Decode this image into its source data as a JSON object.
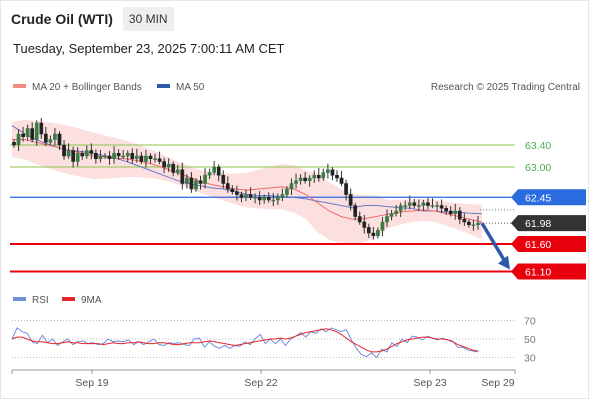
{
  "header": {
    "instrument": "Crude Oil (WTI)",
    "interval": "30 MIN",
    "datetime": "Tuesday, September 23, 2025 7:00:11 AM CET"
  },
  "legend": {
    "items": [
      {
        "label": "MA 20 + Bollinger Bands",
        "color": "#f28b82"
      },
      {
        "label": "MA 50",
        "color": "#2a5aa8"
      }
    ],
    "credit": "Research © 2025 Trading Central"
  },
  "rsi_legend": {
    "items": [
      {
        "label": "RSI",
        "color": "#6f8fd8"
      },
      {
        "label": "9MA",
        "color": "#e8262a"
      }
    ]
  },
  "chart_data": {
    "type": "line",
    "title": "",
    "xlabel": "",
    "ylabel": "",
    "x_ticks": [
      "Sep 19",
      "Sep 22",
      "Sep 23",
      "Sep 29"
    ],
    "ylim": [
      60.8,
      64.0
    ],
    "levels": [
      {
        "value": 63.4,
        "label": "63.40",
        "kind": "target",
        "color": "#8bc34a",
        "text_color": "#4caf50"
      },
      {
        "value": 63.0,
        "label": "63.00",
        "kind": "target",
        "color": "#8bc34a",
        "text_color": "#4caf50"
      },
      {
        "value": 62.45,
        "label": "62.45",
        "kind": "pivot",
        "color": "#2a6be0",
        "text_color": "#ffffff"
      },
      {
        "value": 61.98,
        "label": "61.98",
        "kind": "last",
        "color": "#333333",
        "text_color": "#ffffff"
      },
      {
        "value": 61.6,
        "label": "61.60",
        "kind": "support",
        "color": "#e8000d",
        "text_color": "#ffffff"
      },
      {
        "value": 61.1,
        "label": "61.10",
        "kind": "support",
        "color": "#e8000d",
        "text_color": "#ffffff"
      }
    ],
    "series": [
      {
        "name": "Price",
        "values": [
          63.4,
          63.6,
          63.55,
          63.7,
          63.5,
          63.8,
          63.6,
          63.45,
          63.5,
          63.6,
          63.4,
          63.2,
          63.3,
          63.1,
          63.25,
          63.2,
          63.3,
          63.25,
          63.15,
          63.2,
          63.2,
          63.15,
          63.25,
          63.2,
          63.2,
          63.25,
          63.15,
          63.2,
          63.1,
          63.2,
          63.15,
          63.15,
          63.1,
          63.0,
          63.05,
          62.9,
          62.95,
          62.7,
          62.8,
          62.6,
          62.75,
          62.7,
          62.85,
          62.9,
          63.0,
          62.85,
          62.7,
          62.6,
          62.55,
          62.5,
          62.45,
          62.5,
          62.45,
          62.45,
          62.4,
          62.45,
          62.4,
          62.4,
          62.45,
          62.5,
          62.6,
          62.7,
          62.75,
          62.8,
          62.75,
          62.8,
          62.85,
          62.8,
          62.9,
          62.95,
          62.85,
          62.8,
          62.7,
          62.5,
          62.3,
          62.1,
          62.0,
          61.9,
          61.8,
          61.75,
          61.85,
          62.0,
          62.1,
          62.15,
          62.2,
          62.3,
          62.3,
          62.35,
          62.3,
          62.3,
          62.35,
          62.3,
          62.3,
          62.3,
          62.25,
          62.2,
          62.15,
          62.2,
          62.05,
          62.0,
          61.95,
          61.95,
          61.98
        ]
      },
      {
        "name": "MA 20",
        "values": [
          63.5,
          63.5,
          63.45,
          63.4,
          63.35,
          63.3,
          63.25,
          63.2,
          63.18,
          63.16,
          63.14,
          63.1,
          63.05,
          62.98,
          62.9,
          62.82,
          62.74,
          62.68,
          62.64,
          62.6,
          62.58,
          62.6,
          62.62,
          62.64,
          62.6,
          62.5,
          62.35,
          62.2,
          62.1,
          62.05,
          62.06,
          62.1,
          62.14,
          62.18,
          62.2,
          62.22,
          62.2,
          62.15,
          62.1,
          62.05,
          62.0
        ]
      },
      {
        "name": "MA 50",
        "values": [
          63.75,
          63.62,
          63.5,
          63.42,
          63.35,
          63.3,
          63.28,
          63.24,
          63.2,
          63.15,
          63.08,
          63.0,
          62.92,
          62.84,
          62.76,
          62.7,
          62.66,
          62.62,
          62.6,
          62.56,
          62.5,
          62.48,
          62.48,
          62.46,
          62.45,
          62.42,
          62.38,
          62.34,
          62.3,
          62.26,
          62.3,
          62.3,
          62.28,
          62.26,
          62.25,
          62.2,
          62.2,
          62.18,
          62.18,
          62.16,
          62.15
        ]
      },
      {
        "name": "RSI",
        "values": [
          50,
          62,
          58,
          56,
          47,
          45,
          54,
          46,
          50,
          43,
          47,
          50,
          44,
          47,
          48,
          45,
          46,
          44,
          45,
          50,
          47,
          48,
          47,
          49,
          44,
          47,
          44,
          47,
          50,
          44,
          43,
          46,
          45,
          46,
          44,
          43,
          50,
          51,
          41,
          47,
          42,
          40,
          43,
          40,
          43,
          42,
          47,
          44,
          50,
          55,
          45,
          50,
          45,
          50,
          43,
          50,
          53,
          57,
          52,
          58,
          56,
          61,
          58,
          62,
          60,
          58,
          60,
          49,
          40,
          33,
          31,
          35,
          30,
          39,
          36,
          46,
          42,
          50,
          46,
          53,
          52,
          49,
          53,
          51,
          49,
          51,
          49,
          48,
          41,
          41,
          38,
          37,
          36
        ]
      },
      {
        "name": "9MA",
        "values": [
          50,
          52,
          52,
          50,
          48,
          47,
          47,
          46,
          45,
          45,
          46,
          47,
          46,
          46,
          45,
          45,
          45,
          45,
          44,
          45,
          46,
          45,
          45,
          46,
          46,
          47,
          46,
          45,
          45,
          46,
          46,
          45,
          44,
          44,
          45,
          46,
          46,
          46,
          47,
          48,
          47,
          46,
          45,
          44,
          43,
          44,
          45,
          46,
          47,
          48,
          49,
          50,
          50,
          51,
          50,
          51,
          53,
          55,
          57,
          58,
          59,
          60,
          61,
          60,
          58,
          55,
          51,
          47,
          44,
          41,
          38,
          36,
          36,
          37,
          39,
          42,
          45,
          47,
          49,
          50,
          51,
          52,
          52,
          51,
          50,
          50,
          49,
          47,
          44,
          42,
          40,
          38,
          37
        ]
      }
    ],
    "rsi_ticks": [
      "70",
      "50",
      "30"
    ],
    "rsi_range": [
      10,
      80
    ]
  }
}
